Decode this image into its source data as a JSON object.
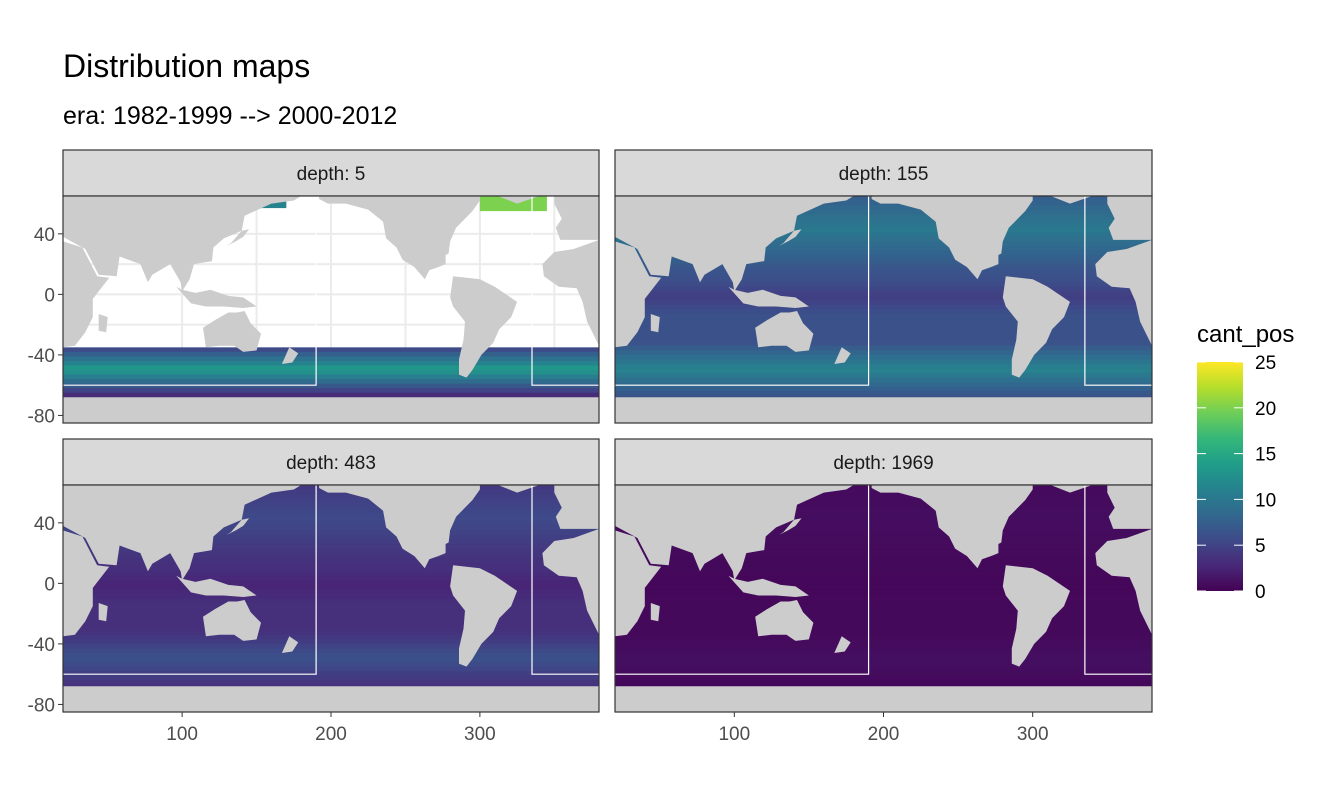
{
  "chart_data": {
    "type": "heatmap",
    "title": "Distribution maps",
    "subtitle": "era: 1982-1999 --> 2000-2012",
    "x_ticks": [
      100,
      200,
      300
    ],
    "y_ticks": [
      40,
      0,
      -40,
      -80
    ],
    "xlim": [
      20,
      380
    ],
    "ylim": [
      -85,
      65
    ],
    "panels": [
      {
        "label": "depth: 5",
        "depth": 5,
        "intensity": 0.55,
        "surface_only": true
      },
      {
        "label": "depth: 155",
        "depth": 155,
        "intensity": 0.45,
        "surface_only": false
      },
      {
        "label": "depth: 483",
        "depth": 483,
        "intensity": 0.25,
        "surface_only": false
      },
      {
        "label": "depth: 1969",
        "depth": 1969,
        "intensity": 0.04,
        "surface_only": false
      }
    ],
    "legend": {
      "title": "cant_pos",
      "ticks": [
        0,
        5,
        10,
        15,
        20,
        25
      ],
      "range": [
        0,
        25
      ],
      "palette": [
        "#440154",
        "#482878",
        "#3e4a89",
        "#31688e",
        "#26828e",
        "#1f9e89",
        "#35b779",
        "#6ece58",
        "#b5de2b",
        "#fde725"
      ]
    },
    "colors": {
      "land": "#cccccc",
      "strip_background": "#d9d9d9",
      "panel_border": "#333333",
      "grid": "#ebebeb"
    }
  }
}
